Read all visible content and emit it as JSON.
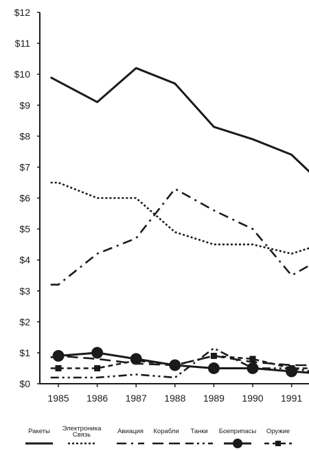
{
  "chart_data": {
    "type": "line",
    "title": "",
    "xlabel": "",
    "ylabel": "",
    "x": [
      "1985",
      "1986",
      "1987",
      "1988",
      "1989",
      "1990",
      "1991"
    ],
    "yticks": [
      "$0",
      "$1",
      "$2",
      "$3",
      "$4",
      "$5",
      "$6",
      "$7",
      "$8",
      "$9",
      "$10",
      "$11",
      "$12"
    ],
    "ylim": [
      0,
      12
    ],
    "xlim": [
      1984.8,
      1991.5
    ],
    "grid": false,
    "legend_position": "bottom",
    "series": [
      {
        "name": "Ракеты",
        "style": "solid",
        "color": "#1a1a1a",
        "points": [
          [
            1984.8,
            9.9
          ],
          [
            1986,
            9.1
          ],
          [
            1987,
            10.2
          ],
          [
            1988,
            9.7
          ],
          [
            1989,
            8.3
          ],
          [
            1990,
            7.9
          ],
          [
            1991,
            7.4
          ],
          [
            1991.5,
            6.8
          ]
        ]
      },
      {
        "name": "Электроника Связь",
        "style": "dotted",
        "color": "#1a1a1a",
        "points": [
          [
            1984.8,
            6.5
          ],
          [
            1985,
            6.5
          ],
          [
            1986,
            6.0
          ],
          [
            1987,
            6.0
          ],
          [
            1988,
            4.9
          ],
          [
            1989,
            4.5
          ],
          [
            1990,
            4.5
          ],
          [
            1991,
            4.2
          ],
          [
            1991.5,
            4.4
          ]
        ]
      },
      {
        "name": "Авиация",
        "style": "dashdot",
        "color": "#1a1a1a",
        "points": [
          [
            1984.8,
            3.2
          ],
          [
            1985,
            3.2
          ],
          [
            1986,
            4.2
          ],
          [
            1987,
            4.7
          ],
          [
            1988,
            6.3
          ],
          [
            1989,
            5.6
          ],
          [
            1990,
            5.0
          ],
          [
            1991,
            3.5
          ],
          [
            1991.5,
            3.85
          ]
        ]
      },
      {
        "name": "Корабли",
        "style": "longdash",
        "color": "#1a1a1a",
        "points": [
          [
            1984.8,
            0.85
          ],
          [
            1985,
            0.9
          ],
          [
            1986,
            0.8
          ],
          [
            1987,
            0.65
          ],
          [
            1988,
            0.6
          ],
          [
            1989,
            0.9
          ],
          [
            1990,
            0.7
          ],
          [
            1991,
            0.6
          ],
          [
            1991.5,
            0.6
          ]
        ]
      },
      {
        "name": "Танки",
        "style": "dashdotdot",
        "color": "#1a1a1a",
        "points": [
          [
            1984.8,
            0.2
          ],
          [
            1985,
            0.2
          ],
          [
            1986,
            0.2
          ],
          [
            1987,
            0.3
          ],
          [
            1988,
            0.2
          ],
          [
            1989,
            1.15
          ],
          [
            1990,
            0.5
          ],
          [
            1991,
            0.5
          ],
          [
            1991.5,
            0.4
          ]
        ]
      },
      {
        "name": "Боеприпасы",
        "style": "solid-marker-circle",
        "color": "#1a1a1a",
        "points": [
          [
            1985,
            0.9
          ],
          [
            1986,
            1.0
          ],
          [
            1987,
            0.8
          ],
          [
            1988,
            0.6
          ],
          [
            1989,
            0.5
          ],
          [
            1990,
            0.5
          ],
          [
            1991,
            0.4
          ],
          [
            1991.5,
            0.35
          ]
        ]
      },
      {
        "name": "Оружие",
        "style": "dash-marker-square",
        "color": "#1a1a1a",
        "points": [
          [
            1984.8,
            0.5
          ],
          [
            1985,
            0.5
          ],
          [
            1986,
            0.5
          ],
          [
            1987,
            0.75
          ],
          [
            1988,
            0.6
          ],
          [
            1989,
            0.9
          ],
          [
            1990,
            0.8
          ],
          [
            1991,
            0.5
          ],
          [
            1991.5,
            0.5
          ]
        ]
      }
    ],
    "legend": [
      {
        "lines": [
          "Ракеты"
        ]
      },
      {
        "lines": [
          "Электроника",
          "Связь"
        ]
      },
      {
        "lines": [
          "Авиация"
        ]
      },
      {
        "lines": [
          "Корабли"
        ]
      },
      {
        "lines": [
          "Танки"
        ]
      },
      {
        "lines": [
          "Боеприпасы"
        ]
      },
      {
        "lines": [
          "Оружие"
        ]
      }
    ]
  }
}
